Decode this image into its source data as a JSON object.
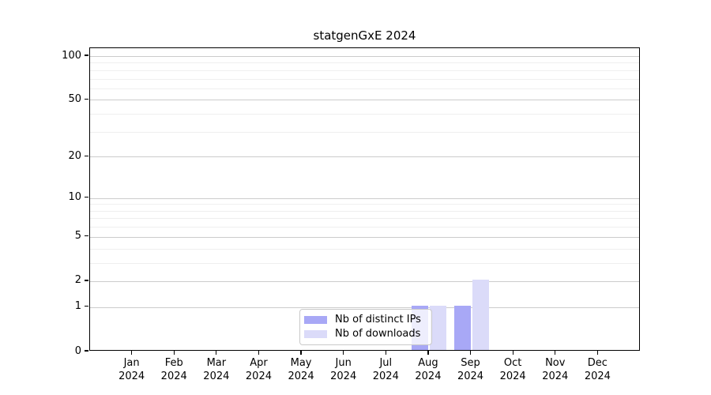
{
  "chart_data": {
    "type": "bar",
    "title": "statgenGxE 2024",
    "categories": [
      "Jan 2024",
      "Feb 2024",
      "Mar 2024",
      "Apr 2024",
      "May 2024",
      "Jun 2024",
      "Jul 2024",
      "Aug 2024",
      "Sep 2024",
      "Oct 2024",
      "Nov 2024",
      "Dec 2024"
    ],
    "series": [
      {
        "name": "Nb of distinct IPs",
        "color": "#a8a8f6",
        "values": [
          0,
          0,
          0,
          0,
          0,
          0,
          0,
          1,
          1,
          0,
          0,
          0
        ]
      },
      {
        "name": "Nb of downloads",
        "color": "#dbdbf9",
        "values": [
          0,
          0,
          0,
          0,
          0,
          0,
          0,
          1,
          2,
          0,
          0,
          0
        ]
      }
    ],
    "xlabel": "",
    "ylabel": "",
    "yscale": "log1p",
    "ylim": [
      0,
      113
    ],
    "yticks": [
      0,
      1,
      2,
      5,
      10,
      20,
      50,
      100
    ],
    "minor_gridlines": [
      3,
      4,
      6,
      7,
      8,
      9,
      30,
      40,
      60,
      70,
      80,
      90
    ],
    "grid": "horizontal",
    "legend": {
      "position": "inside-bottom-center",
      "items": [
        "Nb of distinct IPs",
        "Nb of downloads"
      ]
    }
  },
  "colors": {
    "background": "#ffffff",
    "spine": "#000000",
    "major_grid": "#cccccc",
    "minor_grid": "#efefef",
    "text": "#000000",
    "legend_border": "#c9c9c9"
  }
}
